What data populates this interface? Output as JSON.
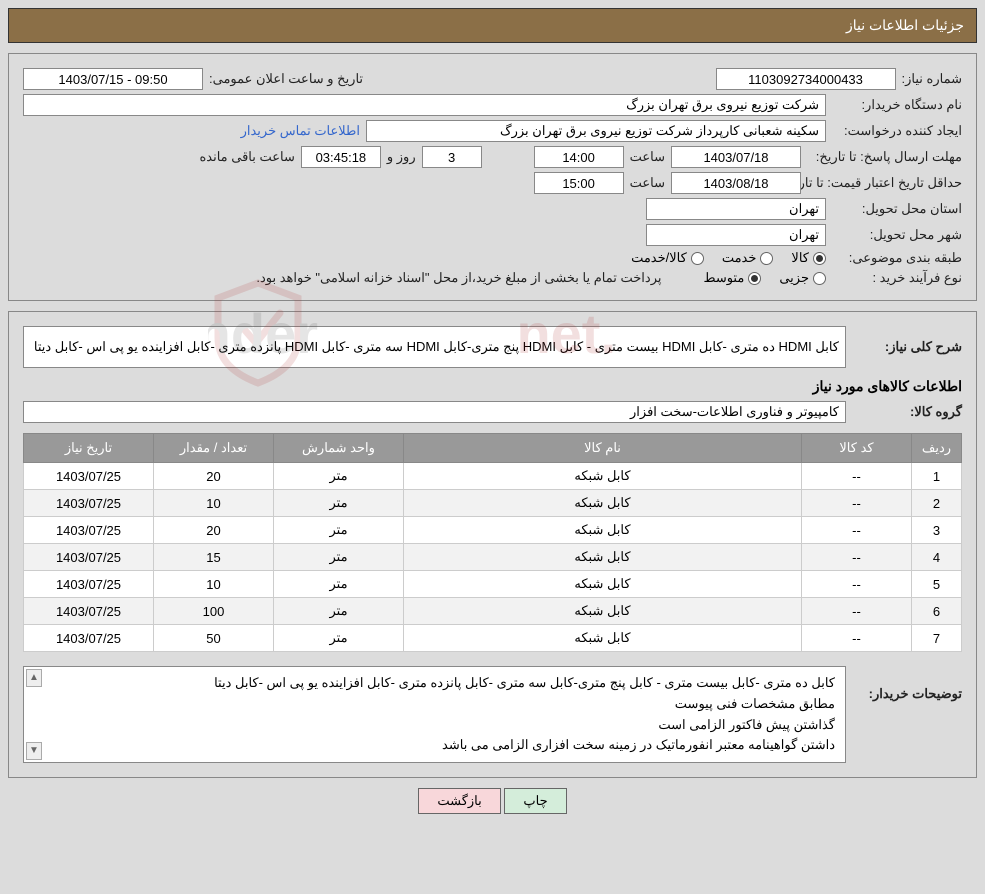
{
  "header": {
    "title": "جزئیات اطلاعات نیاز"
  },
  "panel1": {
    "need_no_label": "شماره نیاز:",
    "need_no": "1103092734000433",
    "pub_date_label": "تاریخ و ساعت اعلان عمومی:",
    "pub_date": "1403/07/15 - 09:50",
    "buyer_label": "نام دستگاه خریدار:",
    "buyer": "شرکت توزیع نیروی برق تهران بزرگ",
    "requester_label": "ایجاد کننده درخواست:",
    "requester": "سکینه شعبانی کارپرداز شرکت توزیع نیروی برق تهران بزرگ",
    "contact_link": "اطلاعات تماس خریدار",
    "reply_deadline_label": "مهلت ارسال پاسخ: تا تاریخ:",
    "reply_date": "1403/07/18",
    "time_label": "ساعت",
    "reply_time": "14:00",
    "days": "3",
    "days_and": "روز و",
    "countdown": "03:45:18",
    "remaining": "ساعت باقی مانده",
    "price_valid_label": "حداقل تاریخ اعتبار قیمت: تا تاریخ:",
    "price_date": "1403/08/18",
    "price_time": "15:00",
    "province_label": "استان محل تحویل:",
    "province": "تهران",
    "city_label": "شهر محل تحویل:",
    "city": "تهران",
    "category_label": "طبقه بندی موضوعی:",
    "cat_goods": "کالا",
    "cat_service": "خدمت",
    "cat_both": "کالا/خدمت",
    "purchase_type_label": "نوع فرآیند خرید :",
    "pt_partial": "جزیی",
    "pt_medium": "متوسط",
    "purchase_note": "پرداخت تمام یا بخشی از مبلغ خرید،از محل \"اسناد خزانه اسلامی\" خواهد بود."
  },
  "panel2": {
    "desc_label": "شرح کلی نیاز:",
    "desc": "کابل HDMI ده متری -کابل HDMI بیست متری - کابل HDMI پنج متری-کابل HDMI سه متری -کابل HDMI پانزده متری -کابل افزاینده یو پی اس -کابل دیتا",
    "goods_title": "اطلاعات کالاهای مورد نیاز",
    "group_label": "گروه کالا:",
    "group": "کامپیوتر و فناوری اطلاعات-سخت افزار",
    "columns": {
      "row": "ردیف",
      "code": "کد کالا",
      "name": "نام کالا",
      "unit": "واحد شمارش",
      "qty": "تعداد / مقدار",
      "date": "تاریخ نیاز"
    },
    "rows": [
      {
        "n": "1",
        "code": "--",
        "name": "کابل شبکه",
        "unit": "متر",
        "qty": "20",
        "date": "1403/07/25"
      },
      {
        "n": "2",
        "code": "--",
        "name": "کابل شبکه",
        "unit": "متر",
        "qty": "10",
        "date": "1403/07/25"
      },
      {
        "n": "3",
        "code": "--",
        "name": "کابل شبکه",
        "unit": "متر",
        "qty": "20",
        "date": "1403/07/25"
      },
      {
        "n": "4",
        "code": "--",
        "name": "کابل شبکه",
        "unit": "متر",
        "qty": "15",
        "date": "1403/07/25"
      },
      {
        "n": "5",
        "code": "--",
        "name": "کابل شبکه",
        "unit": "متر",
        "qty": "10",
        "date": "1403/07/25"
      },
      {
        "n": "6",
        "code": "--",
        "name": "کابل شبکه",
        "unit": "متر",
        "qty": "100",
        "date": "1403/07/25"
      },
      {
        "n": "7",
        "code": "--",
        "name": "کابل شبکه",
        "unit": "متر",
        "qty": "50",
        "date": "1403/07/25"
      }
    ],
    "remarks_label": "توضیحات خریدار:",
    "remarks_l1": "کابل ده متری -کابل  بیست متری - کابل  پنج متری-کابل  سه متری -کابل پانزده متری -کابل افزاینده یو پی اس -کابل دیتا",
    "remarks_l2": "مطابق مشخصات فنی پیوست",
    "remarks_l3": "گذاشتن پیش فاکتور الزامی است",
    "remarks_l4": "داشتن گواهینامه معتبر انفورماتیک در زمینه سخت افزاری الزامی می باشد"
  },
  "buttons": {
    "print": "چاپ",
    "back": "بازگشت"
  },
  "watermark": {
    "text": "AriaTender.net"
  },
  "colors": {
    "header_bg": "#8b6f47",
    "panel_bg": "#dcdcdc",
    "th_bg": "#999999",
    "link": "#3366cc"
  }
}
